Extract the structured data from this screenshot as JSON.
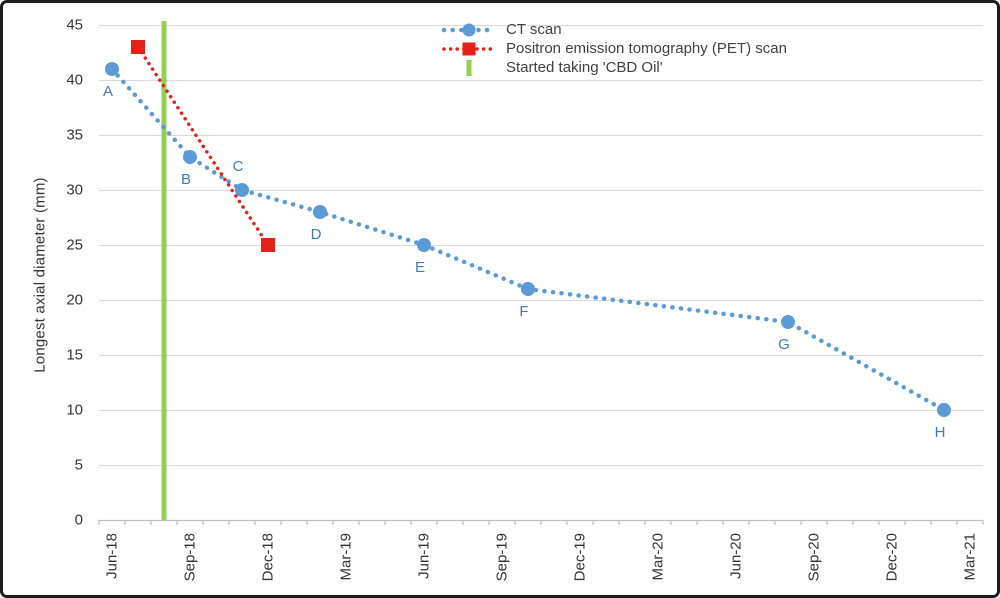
{
  "figure": {
    "kind": "medical line chart",
    "frame_border_color": "#1c1c1c",
    "background_color": "#ffffff"
  },
  "chart_data": {
    "type": "line",
    "title": "",
    "xlabel": "",
    "ylabel": "Longest axial diameter (mm)",
    "ylim": [
      0,
      45
    ],
    "ytick_step": 5,
    "grid": "horizontal",
    "legend_position": "top-center",
    "gridline_color": "#d9d9d9",
    "axis_color": "#bfbfbf",
    "tick_text_color": "#333333",
    "point_label_color": "#3e7cb9",
    "x_axis": {
      "months_total": 34,
      "tick_labels": [
        "Jun-18",
        "Sep-18",
        "Dec-18",
        "Mar-19",
        "Jun-19",
        "Sep-19",
        "Dec-19",
        "Mar-20",
        "Jun-20",
        "Sep-20",
        "Dec-20",
        "Mar-21"
      ],
      "label_month_indices": [
        0,
        3,
        6,
        9,
        12,
        15,
        18,
        21,
        24,
        27,
        30,
        33
      ]
    },
    "series": [
      {
        "id": "ct",
        "name": "CT scan",
        "color": "#5b9bd5",
        "marker": "circle",
        "line_style": "dotted",
        "points": [
          {
            "label": "A",
            "date": "Jun-18",
            "x_month": 0,
            "value": 41,
            "label_pos": "below"
          },
          {
            "label": "B",
            "date": "Sep-18",
            "x_month": 3,
            "value": 33,
            "label_pos": "below"
          },
          {
            "label": "C",
            "date": "Nov-18",
            "x_month": 5,
            "value": 30,
            "label_pos": "above"
          },
          {
            "label": "D",
            "date": "Feb-19",
            "x_month": 8,
            "value": 28,
            "label_pos": "below"
          },
          {
            "label": "E",
            "date": "Jun-19",
            "x_month": 12,
            "value": 25,
            "label_pos": "below"
          },
          {
            "label": "F",
            "date": "Oct-19",
            "x_month": 16,
            "value": 21,
            "label_pos": "below"
          },
          {
            "label": "G",
            "date": "Aug-20",
            "x_month": 26,
            "value": 18,
            "label_pos": "below"
          },
          {
            "label": "H",
            "date": "Feb-21",
            "x_month": 32,
            "value": 10,
            "label_pos": "below"
          }
        ]
      },
      {
        "id": "pet",
        "name": "Positron emission tomography (PET) scan",
        "color": "#e32119",
        "marker": "square",
        "line_style": "dotted",
        "points": [
          {
            "date": "Jul-18",
            "x_month": 1,
            "value": 43
          },
          {
            "date": "Dec-18",
            "x_month": 6,
            "value": 25
          }
        ]
      }
    ],
    "vline": {
      "id": "cbd",
      "name": "Started taking 'CBD Oil'",
      "color": "#92d050",
      "date": "Aug-18",
      "x_month": 2
    }
  }
}
